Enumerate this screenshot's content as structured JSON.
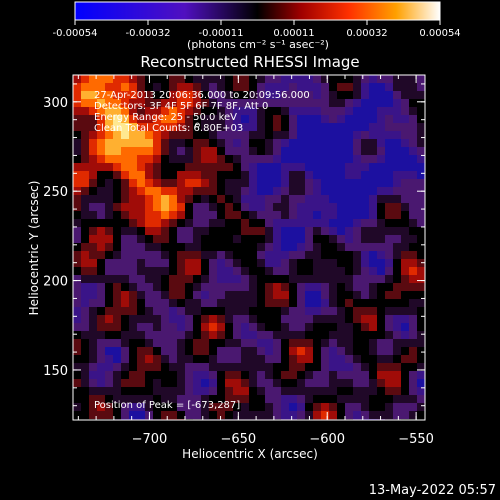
{
  "chart_data": {
    "type": "heatmap",
    "title": "Reconstructed RHESSI Image",
    "xlabel": "Heliocentric X (arcsec)",
    "ylabel": "Heliocentric Y (arcsec)",
    "xlim": [
      -743,
      -545
    ],
    "ylim": [
      122,
      315
    ],
    "x_ticks": [
      -700,
      -650,
      -600,
      -550
    ],
    "y_ticks": [
      150,
      200,
      250,
      300
    ],
    "colorbar": {
      "label": "(photons cm⁻² s⁻¹ asec⁻²)",
      "range": [
        -0.00054,
        0.00054
      ],
      "ticks": [
        "-0.00054",
        "-0.00032",
        "-0.00011",
        "0.00011",
        "0.00032",
        "0.00054"
      ]
    },
    "annotations": [
      "27-Apr-2013 20:06:36.000 to 20:09:56.000",
      "Detectors: 3F 4F 5F 6F 7F 8F, Att 0",
      "Energy Range: 25 - 50.0 keV",
      "Clean    Total Counts: 6.80E+03",
      "Position of Peak = [-673,287]"
    ],
    "peak_position": [
      -673,
      287
    ],
    "timestamp": "13-May-2022 05:57",
    "colors": {
      "background": "#000000",
      "text": "#ffffff"
    }
  }
}
